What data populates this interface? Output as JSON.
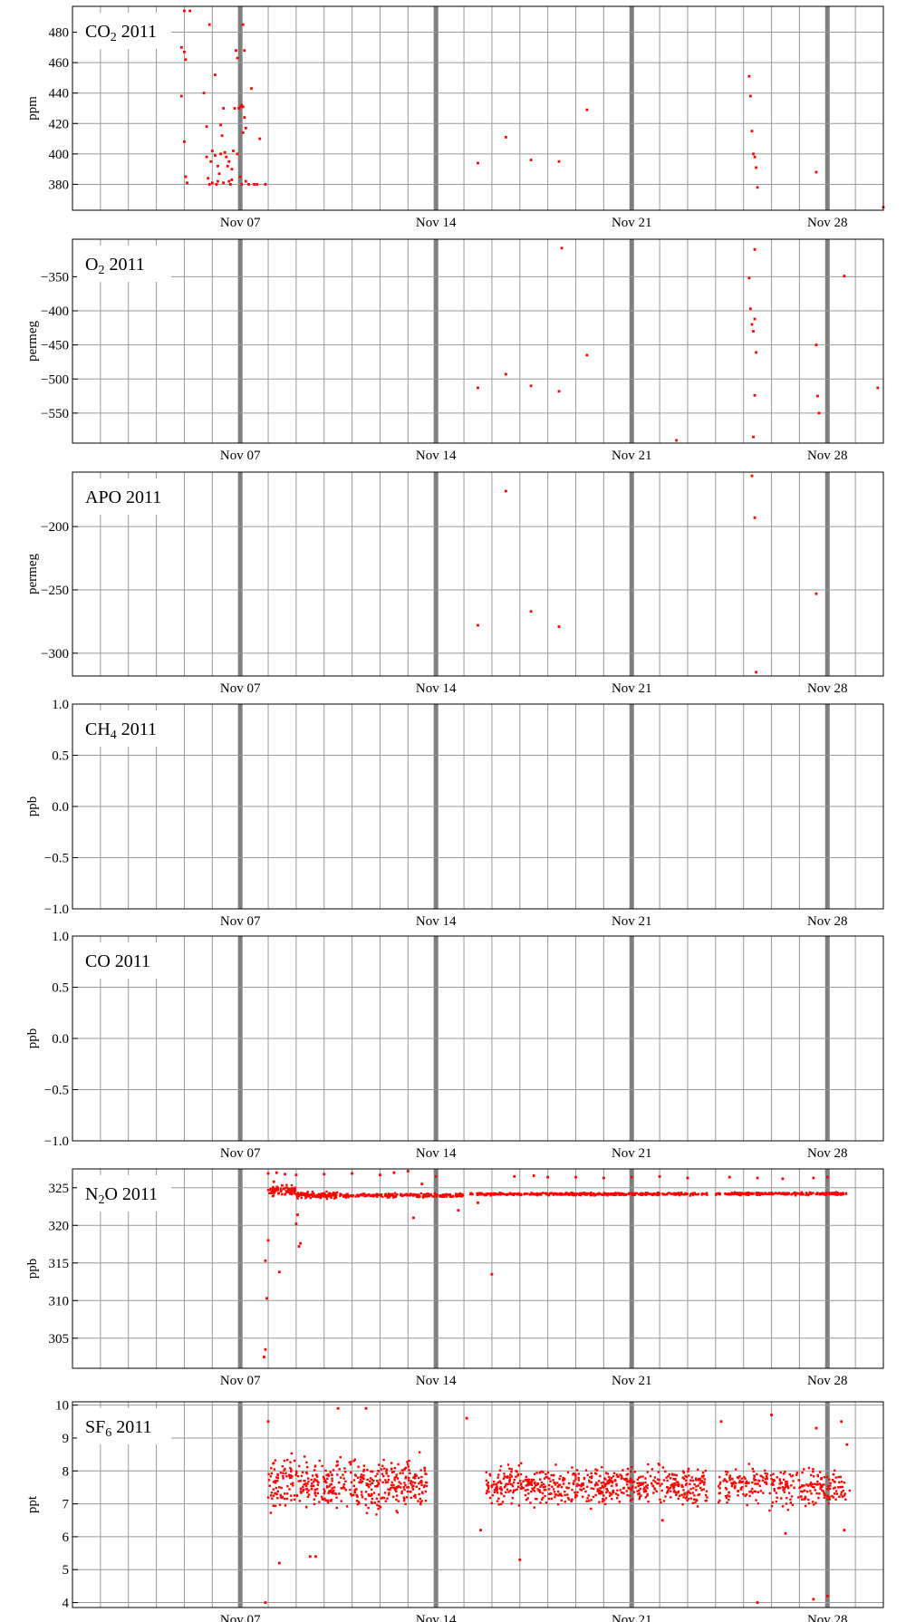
{
  "colors": {
    "points": "#ff0000",
    "grid": "#999999",
    "week_line": "#7f7f7f",
    "frame": "#000000"
  },
  "chart_data": [
    {
      "type": "scatter",
      "title": "CO2 2011",
      "title_main": "CO",
      "title_sub": "2",
      "title_rest": " 2011",
      "ylabel": "ppm",
      "ylim": [
        363,
        497
      ],
      "yticks": [
        380,
        400,
        420,
        440,
        460,
        480
      ],
      "ytick_labels": [
        "380",
        "400",
        "420",
        "440",
        "460",
        "480"
      ],
      "xlim": [
        0,
        29
      ],
      "xtick_labels": [
        "Nov 07",
        "Nov 14",
        "Nov 21",
        "Nov 28"
      ],
      "points": [
        [
          4.0,
          494
        ],
        [
          4.2,
          494
        ],
        [
          3.9,
          470
        ],
        [
          4.0,
          467
        ],
        [
          4.05,
          462
        ],
        [
          3.9,
          438
        ],
        [
          4.0,
          408
        ],
        [
          4.05,
          385
        ],
        [
          4.1,
          381
        ],
        [
          4.9,
          485
        ],
        [
          5.1,
          452
        ],
        [
          5.3,
          419
        ],
        [
          4.7,
          440
        ],
        [
          4.8,
          418
        ],
        [
          4.8,
          398
        ],
        [
          4.85,
          384
        ],
        [
          4.9,
          380
        ],
        [
          4.95,
          395
        ],
        [
          5.0,
          402
        ],
        [
          5.1,
          399
        ],
        [
          5.15,
          380
        ],
        [
          5.2,
          392
        ],
        [
          5.25,
          387
        ],
        [
          5.3,
          400
        ],
        [
          5.35,
          412
        ],
        [
          5.4,
          430
        ],
        [
          5.45,
          401
        ],
        [
          5.5,
          398
        ],
        [
          5.55,
          392
        ],
        [
          5.6,
          382
        ],
        [
          5.65,
          380
        ],
        [
          5.7,
          383
        ],
        [
          5.75,
          402
        ],
        [
          5.8,
          430
        ],
        [
          5.85,
          468
        ],
        [
          5.9,
          463
        ],
        [
          5.95,
          430
        ],
        [
          6.0,
          431
        ],
        [
          6.05,
          432
        ],
        [
          6.1,
          485
        ],
        [
          6.15,
          468
        ],
        [
          6.2,
          417
        ],
        [
          6.1,
          414
        ],
        [
          6.2,
          382
        ],
        [
          6.3,
          380
        ],
        [
          6.4,
          443
        ],
        [
          6.5,
          380
        ],
        [
          6.6,
          380
        ],
        [
          6.1,
          431
        ],
        [
          6.15,
          424
        ],
        [
          6.7,
          410
        ],
        [
          6.9,
          380
        ],
        [
          5.0,
          381
        ],
        [
          5.2,
          382
        ],
        [
          5.4,
          381
        ],
        [
          5.6,
          395
        ],
        [
          5.7,
          390
        ],
        [
          5.9,
          400
        ],
        [
          6.0,
          385
        ],
        [
          6.05,
          380
        ],
        [
          14.5,
          394
        ],
        [
          15.5,
          411
        ],
        [
          16.4,
          396
        ],
        [
          17.4,
          395
        ],
        [
          18.4,
          429
        ],
        [
          24.2,
          451
        ],
        [
          24.25,
          438
        ],
        [
          24.3,
          415
        ],
        [
          24.35,
          400
        ],
        [
          24.4,
          398
        ],
        [
          24.45,
          391
        ],
        [
          24.5,
          378
        ],
        [
          26.6,
          388
        ],
        [
          29.0,
          365
        ]
      ]
    },
    {
      "type": "scatter",
      "title": "O2 2011",
      "title_main": "O",
      "title_sub": "2",
      "title_rest": " 2011",
      "ylabel": "permeg",
      "ylim": [
        -594,
        -295
      ],
      "yticks": [
        -550,
        -500,
        -450,
        -400,
        -350
      ],
      "ytick_labels": [
        "−550",
        "−500",
        "−450",
        "−400",
        "−350"
      ],
      "xlim": [
        0,
        29
      ],
      "xtick_labels": [
        "Nov 07",
        "Nov 14",
        "Nov 21",
        "Nov 28"
      ],
      "points": [
        [
          14.5,
          -513
        ],
        [
          15.5,
          -493
        ],
        [
          16.4,
          -510
        ],
        [
          17.4,
          -518
        ],
        [
          17.5,
          -308
        ],
        [
          18.4,
          -465
        ],
        [
          21.6,
          -590
        ],
        [
          24.2,
          -352
        ],
        [
          24.25,
          -397
        ],
        [
          24.3,
          -420
        ],
        [
          24.35,
          -430
        ],
        [
          24.4,
          -412
        ],
        [
          24.45,
          -461
        ],
        [
          24.4,
          -524
        ],
        [
          24.35,
          -585
        ],
        [
          24.4,
          -310
        ],
        [
          26.6,
          -450
        ],
        [
          26.65,
          -525
        ],
        [
          26.7,
          -550
        ],
        [
          27.6,
          -349
        ],
        [
          28.8,
          -513
        ]
      ]
    },
    {
      "type": "scatter",
      "title": "APO 2011",
      "title_main": "APO",
      "title_sub": "",
      "title_rest": " 2011",
      "ylabel": "permeg",
      "ylim": [
        -318,
        -157
      ],
      "yticks": [
        -300,
        -250,
        -200
      ],
      "ytick_labels": [
        "−300",
        "−250",
        "−200"
      ],
      "xlim": [
        0,
        29
      ],
      "xtick_labels": [
        "Nov 07",
        "Nov 14",
        "Nov 21",
        "Nov 28"
      ],
      "points": [
        [
          14.5,
          -278
        ],
        [
          15.5,
          -172
        ],
        [
          16.4,
          -267
        ],
        [
          17.4,
          -279
        ],
        [
          24.3,
          -160
        ],
        [
          24.4,
          -193
        ],
        [
          24.45,
          -315
        ],
        [
          26.6,
          -253
        ]
      ]
    },
    {
      "type": "scatter",
      "title": "CH4 2011",
      "title_main": "CH",
      "title_sub": "4",
      "title_rest": " 2011",
      "ylabel": "ppb",
      "ylim": [
        -1,
        1
      ],
      "yticks": [
        -1,
        -0.5,
        0,
        0.5,
        1
      ],
      "ytick_labels": [
        "−1.0",
        "−0.5",
        "0.0",
        "0.5",
        "1.0"
      ],
      "xlim": [
        0,
        29
      ],
      "xtick_labels": [
        "Nov 07",
        "Nov 14",
        "Nov 21",
        "Nov 28"
      ],
      "points": []
    },
    {
      "type": "scatter",
      "title": "CO 2011",
      "title_main": "CO",
      "title_sub": "",
      "title_rest": " 2011",
      "ylabel": "ppb",
      "ylim": [
        -1,
        1
      ],
      "yticks": [
        -1,
        -0.5,
        0,
        0.5,
        1
      ],
      "ytick_labels": [
        "−1.0",
        "−0.5",
        "0.0",
        "0.5",
        "1.0"
      ],
      "xlim": [
        0,
        29
      ],
      "xtick_labels": [
        "Nov 07",
        "Nov 14",
        "Nov 21",
        "Nov 28"
      ],
      "points": []
    },
    {
      "type": "scatter",
      "title": "N2O 2011",
      "title_main": "N",
      "title_sub": "2",
      "title_rest": "O 2011",
      "ylabel": "ppb",
      "ylim": [
        301,
        327.5
      ],
      "yticks": [
        305,
        310,
        315,
        320,
        325
      ],
      "ytick_labels": [
        "305",
        "310",
        "315",
        "320",
        "325"
      ],
      "xlim": [
        0,
        29
      ],
      "xtick_labels": [
        "Nov 07",
        "Nov 14",
        "Nov 21",
        "Nov 28"
      ],
      "points": [
        [
          6.85,
          302.5
        ],
        [
          6.9,
          303.5
        ],
        [
          6.95,
          310.3
        ],
        [
          6.9,
          315.3
        ],
        [
          7.0,
          318.0
        ],
        [
          7.4,
          313.8
        ],
        [
          8.1,
          317.2
        ],
        [
          8.15,
          317.6
        ],
        [
          8.0,
          320.2
        ],
        [
          8.05,
          321.4
        ],
        [
          12.2,
          321.0
        ],
        [
          13.8,
          322.0
        ],
        [
          14.5,
          323.0
        ],
        [
          15.0,
          313.5
        ],
        [
          7.0,
          326.9
        ],
        [
          7.3,
          327.0
        ],
        [
          7.6,
          326.8
        ],
        [
          8.0,
          326.7
        ],
        [
          9.0,
          326.8
        ],
        [
          10.0,
          326.9
        ],
        [
          11.0,
          326.7
        ],
        [
          11.5,
          327.0
        ],
        [
          12.0,
          327.2
        ],
        [
          13.0,
          326.5
        ],
        [
          15.8,
          326.5
        ],
        [
          17.0,
          326.4
        ],
        [
          18.0,
          326.4
        ],
        [
          19.0,
          326.3
        ],
        [
          20.0,
          326.4
        ],
        [
          21.0,
          326.5
        ],
        [
          22.0,
          326.3
        ],
        [
          23.5,
          326.4
        ],
        [
          24.5,
          326.3
        ],
        [
          25.4,
          326.2
        ],
        [
          26.5,
          326.3
        ],
        [
          27.0,
          326.4
        ],
        [
          16.5,
          326.6
        ],
        [
          12.5,
          325.5
        ],
        [
          7.5,
          325.3
        ],
        [
          7.2,
          325.8
        ]
      ],
      "bands": [
        {
          "x0": 7.0,
          "x1": 8.0,
          "y_center": 324.6,
          "spread": 0.9,
          "count": 90,
          "size": 2.4
        },
        {
          "x0": 8.0,
          "x1": 9.5,
          "y_center": 324.0,
          "spread": 0.6,
          "count": 110,
          "size": 2.4
        },
        {
          "x0": 9.5,
          "x1": 14.0,
          "y_center": 324.0,
          "spread": 0.35,
          "count": 220,
          "size": 2.4
        },
        {
          "x0": 14.2,
          "x1": 22.7,
          "y_center": 324.15,
          "spread": 0.25,
          "count": 420,
          "size": 2.4
        },
        {
          "x0": 23.0,
          "x1": 27.7,
          "y_center": 324.2,
          "spread": 0.25,
          "count": 240,
          "size": 2.4
        }
      ]
    },
    {
      "type": "scatter",
      "title": "SF6 2011",
      "title_main": "SF",
      "title_sub": "6",
      "title_rest": " 2011",
      "ylabel": "ppt",
      "ylim": [
        3.85,
        10.1
      ],
      "yticks": [
        4,
        5,
        6,
        7,
        8,
        9,
        10
      ],
      "ytick_labels": [
        "4",
        "5",
        "6",
        "7",
        "8",
        "9",
        "10"
      ],
      "xlim": [
        0,
        29
      ],
      "xtick_labels": [
        "Nov 07",
        "Nov 14",
        "Nov 21",
        "Nov 28"
      ],
      "points": [
        [
          6.9,
          4.0
        ],
        [
          7.0,
          9.5
        ],
        [
          7.4,
          5.2
        ],
        [
          8.5,
          5.4
        ],
        [
          8.7,
          5.4
        ],
        [
          9.5,
          9.9
        ],
        [
          10.5,
          9.9
        ],
        [
          14.1,
          9.6
        ],
        [
          16.0,
          5.3
        ],
        [
          23.2,
          9.5
        ],
        [
          24.5,
          4.0
        ],
        [
          25.0,
          9.7
        ],
        [
          26.5,
          4.1
        ],
        [
          26.6,
          9.3
        ],
        [
          27.0,
          4.2
        ],
        [
          27.5,
          9.5
        ],
        [
          27.7,
          8.8
        ],
        [
          27.6,
          6.2
        ],
        [
          25.5,
          6.1
        ],
        [
          14.6,
          6.2
        ],
        [
          21.1,
          6.5
        ]
      ],
      "bands": [
        {
          "x0": 7.0,
          "x1": 12.7,
          "y_center": 7.6,
          "spread": 1.05,
          "count": 470,
          "size": 2.6
        },
        {
          "x0": 14.8,
          "x1": 22.7,
          "y_center": 7.55,
          "spread": 0.8,
          "count": 620,
          "size": 2.6
        },
        {
          "x0": 23.1,
          "x1": 27.8,
          "y_center": 7.5,
          "spread": 0.8,
          "count": 300,
          "size": 2.6
        }
      ]
    }
  ]
}
